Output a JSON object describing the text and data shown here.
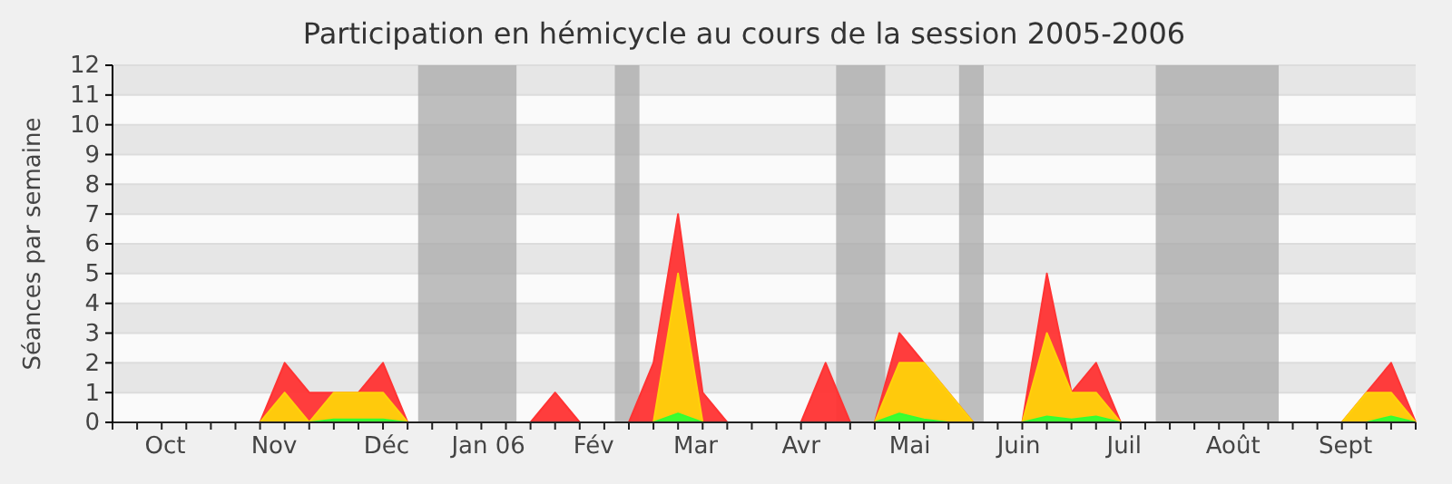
{
  "chart_data": {
    "type": "area",
    "title": "Participation en hémicycle au cours de la session 2005-2006",
    "ylabel": "Séances par semaine",
    "x": [
      "2005-09-19",
      "2005-09-26",
      "2005-10-03",
      "2005-10-10",
      "2005-10-17",
      "2005-10-24",
      "2005-10-31",
      "2005-11-07",
      "2005-11-14",
      "2005-11-21",
      "2005-11-28",
      "2005-12-05",
      "2005-12-12",
      "2005-12-19",
      "2005-12-26",
      "2006-01-02",
      "2006-01-09",
      "2006-01-16",
      "2006-01-23",
      "2006-01-30",
      "2006-02-06",
      "2006-02-13",
      "2006-02-20",
      "2006-02-27",
      "2006-03-06",
      "2006-03-13",
      "2006-03-20",
      "2006-03-27",
      "2006-04-03",
      "2006-04-10",
      "2006-04-17",
      "2006-04-24",
      "2006-05-01",
      "2006-05-08",
      "2006-05-15",
      "2006-05-22",
      "2006-05-29",
      "2006-06-05",
      "2006-06-12",
      "2006-06-19",
      "2006-06-26",
      "2006-07-03",
      "2006-07-10",
      "2006-07-17",
      "2006-07-24",
      "2006-07-31",
      "2006-08-07",
      "2006-08-14",
      "2006-08-21",
      "2006-08-28",
      "2006-09-04",
      "2006-09-11",
      "2006-09-18",
      "2006-09-25"
    ],
    "series": [
      {
        "color": "#ff3333",
        "values": [
          0,
          0,
          0,
          0,
          0,
          0,
          0,
          2,
          1,
          1,
          1,
          2,
          0,
          0,
          0,
          0,
          0,
          0,
          1,
          0,
          0,
          0,
          2,
          7,
          1,
          0,
          0,
          0,
          0,
          2,
          0,
          0,
          3,
          2,
          1,
          0,
          0,
          0,
          5,
          1,
          2,
          0,
          0,
          0,
          0,
          0,
          0,
          0,
          0,
          0,
          0,
          1,
          2,
          0
        ]
      },
      {
        "color": "#ffd20a",
        "values": [
          0,
          0,
          0,
          0,
          0,
          0,
          0,
          1,
          0,
          1,
          1,
          1,
          0,
          0,
          0,
          0,
          0,
          0,
          0,
          0,
          0,
          0,
          0,
          5,
          0,
          0,
          0,
          0,
          0,
          0,
          0,
          0,
          2,
          2,
          1,
          0,
          0,
          0,
          3,
          1,
          1,
          0,
          0,
          0,
          0,
          0,
          0,
          0,
          0,
          0,
          0,
          1,
          1,
          0
        ]
      },
      {
        "color": "#33ff33",
        "values": [
          0,
          0,
          0,
          0,
          0,
          0,
          0,
          0,
          0,
          0.1,
          0.1,
          0.1,
          0,
          0,
          0,
          0,
          0,
          0,
          0,
          0,
          0,
          0,
          0,
          0.3,
          0,
          0,
          0,
          0,
          0,
          0,
          0,
          0,
          0.3,
          0.1,
          0,
          0,
          0,
          0,
          0.2,
          0.1,
          0.2,
          0,
          0,
          0,
          0,
          0,
          0,
          0,
          0,
          0,
          0,
          0,
          0.2,
          0
        ]
      }
    ],
    "xlim": [
      "2005-09-19",
      "2006-09-25"
    ],
    "xticks": [
      {
        "value": "2005-10-04",
        "label": "Oct"
      },
      {
        "value": "2005-11-04",
        "label": "Nov"
      },
      {
        "value": "2005-12-06",
        "label": "Déc"
      },
      {
        "value": "2006-01-04",
        "label": "Jan 06"
      },
      {
        "value": "2006-02-03",
        "label": "Fév"
      },
      {
        "value": "2006-03-04",
        "label": "Mar"
      },
      {
        "value": "2006-04-03",
        "label": "Avr"
      },
      {
        "value": "2006-05-04",
        "label": "Mai"
      },
      {
        "value": "2006-06-04",
        "label": "Juin"
      },
      {
        "value": "2006-07-04",
        "label": "Juil"
      },
      {
        "value": "2006-08-04",
        "label": "Août"
      },
      {
        "value": "2006-09-05",
        "label": "Sept"
      }
    ],
    "ylim": [
      0,
      12
    ],
    "yticks": [
      0,
      1,
      2,
      3,
      4,
      5,
      6,
      7,
      8,
      9,
      10,
      11,
      12
    ],
    "grid": "y",
    "bands": [
      {
        "axis": "x",
        "from": "2005-12-15",
        "to": "2006-01-12",
        "color": "#aaaaaa"
      },
      {
        "axis": "x",
        "from": "2006-02-09",
        "to": "2006-02-16",
        "color": "#aaaaaa"
      },
      {
        "axis": "x",
        "from": "2006-04-13",
        "to": "2006-04-27",
        "color": "#aaaaaa"
      },
      {
        "axis": "x",
        "from": "2006-05-18",
        "to": "2006-05-25",
        "color": "#aaaaaa"
      },
      {
        "axis": "x",
        "from": "2006-07-13",
        "to": "2006-08-17",
        "color": "#aaaaaa"
      }
    ]
  }
}
